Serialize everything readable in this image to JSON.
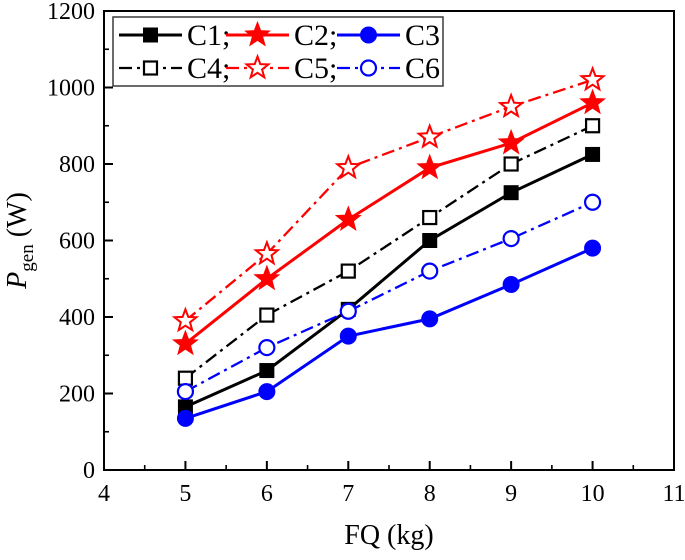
{
  "figure": {
    "background": "#ffffff",
    "frame_color": "#000000",
    "legend_border_color": "#3a3a3a"
  },
  "chart_data": {
    "type": "line",
    "title": "",
    "xlabel": "FQ (kg)",
    "ylabel": "P_gen (W)",
    "ylabel_parts": {
      "symbol": "P",
      "subscript": "gen",
      "unit": " (W)"
    },
    "xlim": [
      4,
      11
    ],
    "ylim": [
      0,
      1200
    ],
    "x_major_ticks": [
      4,
      5,
      6,
      7,
      8,
      9,
      10,
      11
    ],
    "x_minor_ticks": [
      4.5,
      5.5,
      6.5,
      7.5,
      8.5,
      9.5,
      10.5
    ],
    "y_major_ticks": [
      0,
      200,
      400,
      600,
      800,
      1000,
      1200
    ],
    "y_minor_ticks": [
      100,
      300,
      500,
      700,
      900,
      1100
    ],
    "grid": false,
    "legend_position": "top-left",
    "legend_layout": {
      "rows": 2,
      "columns": 3
    },
    "x": [
      5,
      6,
      7,
      8,
      9,
      10
    ],
    "series": [
      {
        "name": "C1",
        "label": "C1;",
        "color": "#000000",
        "line": "solid",
        "marker": "square",
        "fill": "filled",
        "values": [
          165,
          260,
          420,
          600,
          725,
          825
        ]
      },
      {
        "name": "C2",
        "label": "C2;",
        "color": "#ff0000",
        "line": "solid",
        "marker": "star",
        "fill": "filled",
        "values": [
          330,
          500,
          655,
          790,
          855,
          960
        ]
      },
      {
        "name": "C3",
        "label": "C3",
        "color": "#0000ff",
        "line": "solid",
        "marker": "circle",
        "fill": "filled",
        "values": [
          135,
          205,
          350,
          395,
          485,
          580
        ]
      },
      {
        "name": "C4",
        "label": "C4;",
        "color": "#000000",
        "line": "dashdot",
        "marker": "square",
        "fill": "open",
        "values": [
          240,
          405,
          520,
          660,
          800,
          900
        ]
      },
      {
        "name": "C5",
        "label": "C5;",
        "color": "#ff0000",
        "line": "dashdot",
        "marker": "star",
        "fill": "open",
        "values": [
          390,
          565,
          790,
          870,
          950,
          1020
        ]
      },
      {
        "name": "C6",
        "label": "C6",
        "color": "#0000ff",
        "line": "dashdot",
        "marker": "circle",
        "fill": "open",
        "values": [
          205,
          320,
          415,
          520,
          605,
          700
        ]
      }
    ]
  }
}
